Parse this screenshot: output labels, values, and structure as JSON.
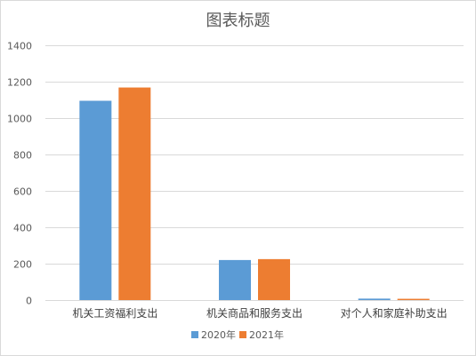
{
  "chart_data": {
    "type": "bar",
    "title": "图表标题",
    "categories": [
      "机关工资福利支出",
      "机关商品和服务支出",
      "对个人和家庭补助支出"
    ],
    "series": [
      {
        "name": "2020年",
        "values": [
          1095,
          220,
          8
        ],
        "color": "#5b9bd5"
      },
      {
        "name": "2021年",
        "values": [
          1168,
          225,
          7
        ],
        "color": "#ed7d31"
      }
    ],
    "ylim": [
      0,
      1400
    ],
    "yticks": [
      0,
      200,
      400,
      600,
      800,
      1000,
      1200,
      1400
    ],
    "grid": true,
    "legend": "bottom"
  }
}
